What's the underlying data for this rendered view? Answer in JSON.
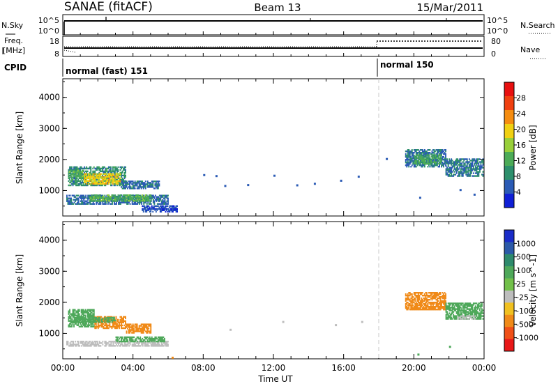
{
  "header": {
    "title": "SANAE (fitACF)",
    "beam": "Beam 13",
    "date": "15/Mar/2011"
  },
  "panels": {
    "nsky_label": "N.Sky",
    "nsky_ticks": [
      "10^5",
      "10^0"
    ],
    "nsearch_label": "N.Search",
    "nsearch_ticks": [
      "10^5",
      "10^0"
    ],
    "freq_label": [
      "Freq.",
      "[MHz]"
    ],
    "freq_ticks": [
      "18",
      "8"
    ],
    "nave_label": "Nave",
    "nave_ticks": [
      "80",
      "0"
    ],
    "cpid_label": "CPID",
    "cpid_segments": [
      {
        "label": "normal (fast) 151",
        "start_hour": 0
      },
      {
        "label": "normal 150",
        "start_hour": 18
      }
    ],
    "mode_change_hour": 18
  },
  "colors": {
    "power_scale": [
      "#0f1fd6",
      "#2b5bb5",
      "#2d8f6c",
      "#4cab57",
      "#98cf3a",
      "#f0d012",
      "#f58c10",
      "#f04010",
      "#e81010"
    ],
    "velocity_scale": [
      "#1a2cc8",
      "#2c5aa8",
      "#2e8a6c",
      "#4ea85a",
      "#72c04a",
      "#bdbdbd",
      "#f0c020",
      "#f08a18",
      "#f05018",
      "#e81818"
    ]
  },
  "chart_data": [
    {
      "type": "heatmap",
      "name": "power",
      "xlabel": "",
      "ylabel": "Slant Range [km]",
      "xlim": [
        0,
        24
      ],
      "ylim": [
        180,
        4600
      ],
      "yticks": [
        "1000",
        "2000",
        "3000",
        "4000"
      ],
      "colorbar": {
        "label": "Power [dB]",
        "range": [
          0,
          32
        ],
        "ticks": [
          "4",
          "8",
          "12",
          "16",
          "20",
          "24",
          "28"
        ]
      },
      "patches": [
        {
          "t0": 0.3,
          "t1": 3.6,
          "r0": 1150,
          "r1": 1750,
          "value": 10
        },
        {
          "t0": 1.2,
          "t1": 3.3,
          "r0": 1200,
          "r1": 1550,
          "value": 22
        },
        {
          "t0": 0.3,
          "t1": 1.2,
          "r0": 1400,
          "r1": 1650,
          "value": 14
        },
        {
          "t0": 3.3,
          "t1": 5.5,
          "r0": 1050,
          "r1": 1300,
          "value": 7
        },
        {
          "t0": 0.2,
          "t1": 6.0,
          "r0": 550,
          "r1": 850,
          "value": 7
        },
        {
          "t0": 1.5,
          "t1": 5.0,
          "r0": 650,
          "r1": 850,
          "value": 14
        },
        {
          "t0": 4.5,
          "t1": 6.5,
          "r0": 300,
          "r1": 500,
          "value": 5
        },
        {
          "t0": 19.5,
          "t1": 21.8,
          "r0": 1750,
          "r1": 2300,
          "value": 8
        },
        {
          "t0": 21.8,
          "t1": 23.9,
          "r0": 1450,
          "r1": 2000,
          "value": 8
        },
        {
          "t0": 20.0,
          "t1": 21.5,
          "r0": 1850,
          "r1": 2150,
          "value": 13
        }
      ],
      "scatter": [
        {
          "t": 8.0,
          "r": 1530,
          "value": 5
        },
        {
          "t": 8.7,
          "r": 1500,
          "value": 5
        },
        {
          "t": 9.2,
          "r": 1180,
          "value": 5
        },
        {
          "t": 10.5,
          "r": 1210,
          "value": 5
        },
        {
          "t": 12.0,
          "r": 1510,
          "value": 5
        },
        {
          "t": 13.3,
          "r": 1200,
          "value": 6
        },
        {
          "t": 14.3,
          "r": 1250,
          "value": 5
        },
        {
          "t": 15.8,
          "r": 1350,
          "value": 5
        },
        {
          "t": 16.8,
          "r": 1480,
          "value": 5
        },
        {
          "t": 18.4,
          "r": 2050,
          "value": 5
        },
        {
          "t": 20.3,
          "r": 800,
          "value": 5
        },
        {
          "t": 22.6,
          "r": 1050,
          "value": 5
        },
        {
          "t": 23.4,
          "r": 900,
          "value": 5
        }
      ]
    },
    {
      "type": "heatmap",
      "name": "velocity",
      "xlabel": "Time UT",
      "ylabel": "Slant Range [km]",
      "xlim": [
        0,
        24
      ],
      "ylim": [
        180,
        4600
      ],
      "xticks": [
        "00:00",
        "04:00",
        "08:00",
        "12:00",
        "16:00",
        "20:00",
        "00:00"
      ],
      "yticks": [
        "1000",
        "2000",
        "3000",
        "4000"
      ],
      "colorbar": {
        "label": "Velocity [m s^-1]",
        "ticks": [
          "1000",
          "500",
          "100",
          "25",
          "-25",
          "-100",
          "-500",
          "-1000"
        ]
      },
      "patches": [
        {
          "t0": 0.3,
          "t1": 1.8,
          "r0": 1200,
          "r1": 1750,
          "value": 100
        },
        {
          "t0": 1.8,
          "t1": 3.6,
          "r0": 1150,
          "r1": 1550,
          "value": -100
        },
        {
          "t0": 3.6,
          "t1": 5.0,
          "r0": 1000,
          "r1": 1300,
          "value": -100
        },
        {
          "t0": 0.5,
          "t1": 3.0,
          "r0": 1350,
          "r1": 1500,
          "value": 100
        },
        {
          "t0": 0.2,
          "t1": 6.0,
          "r0": 580,
          "r1": 760,
          "value": 0
        },
        {
          "t0": 3.0,
          "t1": 5.8,
          "r0": 720,
          "r1": 900,
          "value": 100
        },
        {
          "t0": 19.5,
          "t1": 21.8,
          "r0": 1750,
          "r1": 2300,
          "value": -100
        },
        {
          "t0": 21.8,
          "t1": 23.9,
          "r0": 1450,
          "r1": 1950,
          "value": 100
        },
        {
          "t0": 22.5,
          "t1": 23.5,
          "r0": 1450,
          "r1": 1550,
          "value": 0
        }
      ],
      "scatter": [
        {
          "t": 9.5,
          "r": 1150,
          "value": 0
        },
        {
          "t": 12.5,
          "r": 1400,
          "value": 0
        },
        {
          "t": 15.5,
          "r": 1300,
          "value": 0
        },
        {
          "t": 17.0,
          "r": 1400,
          "value": 0
        },
        {
          "t": 20.2,
          "r": 350,
          "value": 100
        },
        {
          "t": 22.0,
          "r": 600,
          "value": 100
        },
        {
          "t": 6.2,
          "r": 250,
          "value": -100
        }
      ]
    }
  ]
}
